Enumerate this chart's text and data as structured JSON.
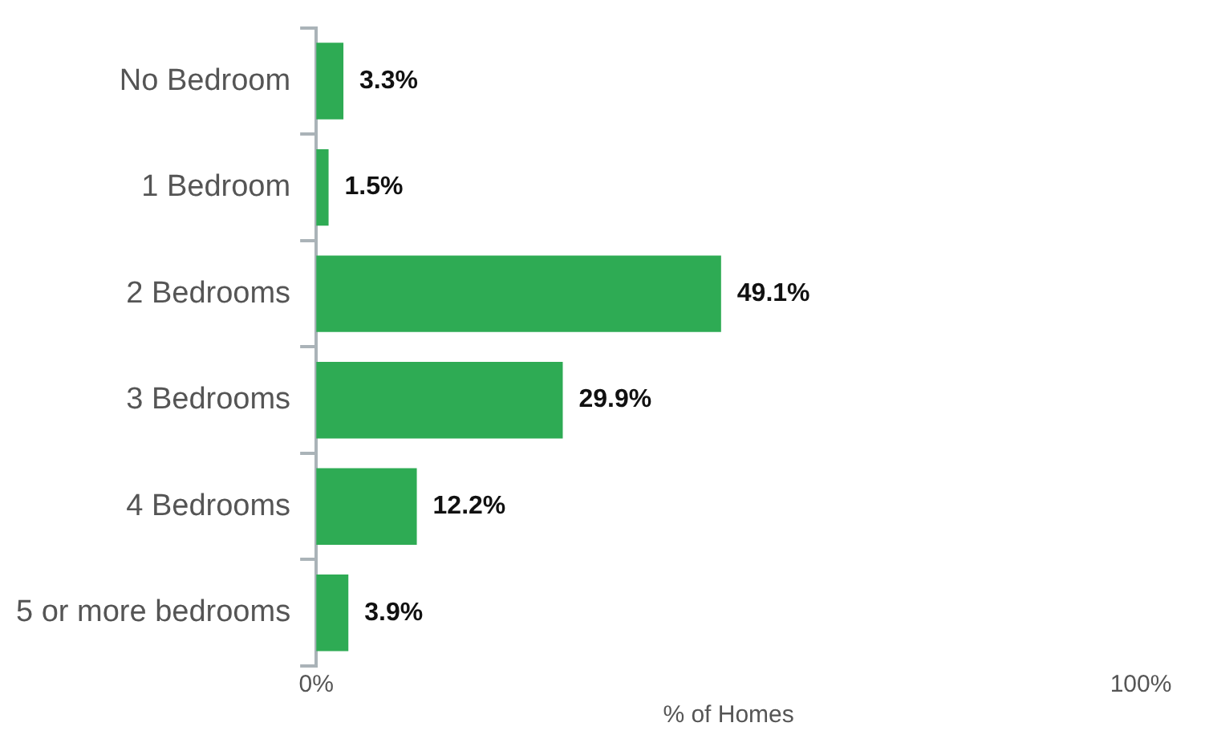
{
  "chart_data": {
    "type": "bar",
    "orientation": "horizontal",
    "xlabel": "% of Homes",
    "categories": [
      "No Bedroom",
      "1 Bedroom",
      "2 Bedrooms",
      "3 Bedrooms",
      "4 Bedrooms",
      "5 or more bedrooms"
    ],
    "values": [
      3.3,
      1.5,
      49.1,
      29.9,
      12.2,
      3.9
    ],
    "value_labels": [
      "3.3%",
      "1.5%",
      "49.1%",
      "29.9%",
      "12.2%",
      "3.9%"
    ],
    "color": "#2eab54",
    "xlim": [
      0,
      100
    ],
    "xticks": [
      {
        "value": 0,
        "label": "0%"
      },
      {
        "value": 100,
        "label": "100%"
      }
    ],
    "grid": false,
    "legend": false
  }
}
